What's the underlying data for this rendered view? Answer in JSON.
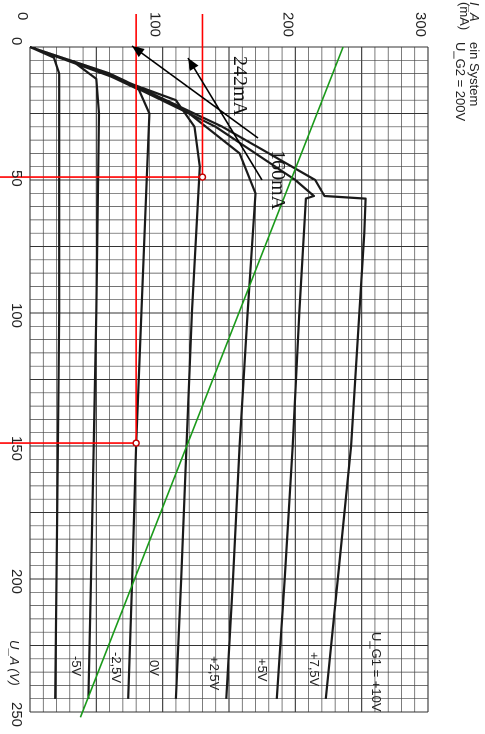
{
  "chart_data": {
    "type": "line",
    "title": "",
    "header_lines": [
      "I_A",
      "(mA)",
      "ein System",
      "U_G2 = 200V"
    ],
    "x_axis": {
      "label": "U_A (V)",
      "range": [
        0,
        250
      ],
      "ticks": [
        "0",
        "50",
        "100",
        "150",
        "200",
        "250"
      ]
    },
    "y_axis": {
      "label": "I_A (mA)",
      "range": [
        0,
        300
      ],
      "ticks": [
        "0",
        "100",
        "200",
        "300"
      ]
    },
    "grid": true,
    "orientation": "rotated 90 degrees clockwise",
    "series": [
      {
        "name": "U_G1 = +10V",
        "label": "U_G1 = +10V",
        "points": [
          [
            0,
            0
          ],
          [
            10,
            60
          ],
          [
            30,
            145
          ],
          [
            50,
            215
          ],
          [
            56,
            222
          ],
          [
            57,
            253
          ],
          [
            70,
            252
          ],
          [
            150,
            242
          ],
          [
            200,
            232
          ],
          [
            245,
            223
          ]
        ]
      },
      {
        "name": "+7,5V",
        "label": "+7,5V",
        "points": [
          [
            0,
            0
          ],
          [
            10,
            60
          ],
          [
            30,
            140
          ],
          [
            50,
            200
          ],
          [
            56,
            214
          ],
          [
            57,
            208
          ],
          [
            100,
            203
          ],
          [
            150,
            198
          ],
          [
            200,
            192
          ],
          [
            245,
            186
          ]
        ]
      },
      {
        "name": "+5V",
        "label": "+5V",
        "points": [
          [
            0,
            0
          ],
          [
            10,
            58
          ],
          [
            25,
            120
          ],
          [
            40,
            158
          ],
          [
            55,
            170
          ],
          [
            100,
            164
          ],
          [
            150,
            158
          ],
          [
            200,
            153
          ],
          [
            245,
            148
          ]
        ]
      },
      {
        "name": "+2,5V",
        "label": "+2,5V",
        "points": [
          [
            0,
            0
          ],
          [
            10,
            55
          ],
          [
            20,
            110
          ],
          [
            30,
            124
          ],
          [
            45,
            128
          ],
          [
            100,
            122
          ],
          [
            150,
            118
          ],
          [
            200,
            114
          ],
          [
            245,
            110
          ]
        ]
      },
      {
        "name": "0V",
        "label": "0V",
        "points": [
          [
            0,
            0
          ],
          [
            8,
            48
          ],
          [
            16,
            82
          ],
          [
            25,
            90
          ],
          [
            50,
            88
          ],
          [
            100,
            84
          ],
          [
            150,
            80
          ],
          [
            200,
            77
          ],
          [
            245,
            74
          ]
        ]
      },
      {
        "name": "-2,5V",
        "label": "-2,5V",
        "points": [
          [
            0,
            0
          ],
          [
            6,
            34
          ],
          [
            12,
            50
          ],
          [
            25,
            52
          ],
          [
            100,
            50
          ],
          [
            150,
            48
          ],
          [
            200,
            46
          ],
          [
            245,
            44
          ]
        ]
      },
      {
        "name": "-5V",
        "label": "-5V",
        "points": [
          [
            0,
            0
          ],
          [
            4,
            18
          ],
          [
            10,
            22
          ],
          [
            100,
            22
          ],
          [
            150,
            21
          ],
          [
            200,
            20
          ],
          [
            245,
            19
          ]
        ]
      }
    ],
    "load_line": {
      "color": "#1a9a1a",
      "points": [
        [
          0,
          236
        ],
        [
          252,
          38
        ]
      ]
    },
    "red_lines": {
      "color": "#ff0000",
      "vertical_U": [
        48.9,
        148.9
      ],
      "horizontal_I": [
        80,
        130
      ]
    },
    "operating_points": [
      [
        48.9,
        130
      ],
      [
        148.9,
        80
      ]
    ],
    "annotations": [
      "242mA",
      "160mA"
    ]
  }
}
